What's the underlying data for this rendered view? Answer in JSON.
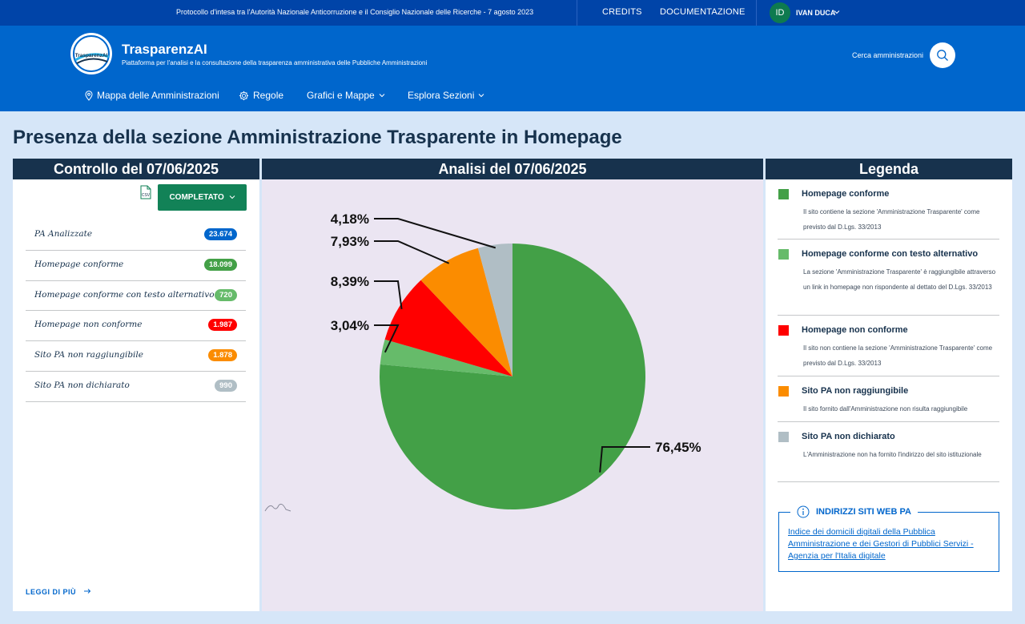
{
  "topbar": {
    "protocol": "Protocollo d'intesa tra l'Autorità Nazionale Anticorruzione e il Consiglio Nazionale delle Ricerche - 7 agosto 2023",
    "credits": "CREDITS",
    "documentazione": "DOCUMENTAZIONE",
    "user_initials": "ID",
    "user_name": "IVAN DUCA"
  },
  "header": {
    "logo_text": "TrasparenzAI",
    "title": "TrasparenzAI",
    "subtitle": "Piattaforma per l'analisi e la consultazione della trasparenza amministrativa delle Pubbliche Amministrazioni",
    "search_label": "Cerca amministrazioni"
  },
  "nav": {
    "mappa": "Mappa delle Amministrazioni",
    "regole": "Regole",
    "grafici": "Grafici e Mappe",
    "esplora": "Esplora Sezioni"
  },
  "page_title": "Presenza della sezione Amministrazione Trasparente in Homepage",
  "left": {
    "title": "Controllo del 07/06/2025",
    "csv": "CSV",
    "status_button": "COMPLETATO",
    "stats": [
      {
        "label": "PA Analizzate",
        "value": "23.674",
        "color": "#0066cc"
      },
      {
        "label": "Homepage conforme",
        "value": "18.099",
        "color": "#43a047"
      },
      {
        "label": "Homepage conforme con testo alternativo",
        "value": "720",
        "color": "#66bb6a"
      },
      {
        "label": "Homepage non conforme",
        "value": "1.987",
        "color": "#ff0000"
      },
      {
        "label": "Sito PA non raggiungibile",
        "value": "1.878",
        "color": "#fb8c00"
      },
      {
        "label": "Sito PA non dichiarato",
        "value": "990",
        "color": "#b0bec5"
      }
    ],
    "read_more": "LEGGI DI PIÙ"
  },
  "middle": {
    "title": "Analisi del 07/06/2025"
  },
  "chart_data": {
    "type": "pie",
    "categories": [
      "Homepage conforme",
      "Homepage conforme con testo alternativo",
      "Homepage non conforme",
      "Sito PA non raggiungibile",
      "Sito PA non dichiarato"
    ],
    "values": [
      76.45,
      3.04,
      8.39,
      7.93,
      4.18
    ],
    "labels": [
      "76,45%",
      "3,04%",
      "8,39%",
      "7,93%",
      "4,18%"
    ],
    "colors": [
      "#43a047",
      "#66bb6a",
      "#ff0000",
      "#fb8c00",
      "#b0bec5"
    ],
    "title": "Analisi del 07/06/2025"
  },
  "legend": {
    "title": "Legenda",
    "items": [
      {
        "title": "Homepage conforme",
        "desc": "Il sito contiene la sezione 'Amministrazione Trasparente' come previsto dal D.Lgs. 33/2013",
        "color": "#43a047"
      },
      {
        "title": "Homepage conforme con testo alternativo",
        "desc": "La sezione 'Amministrazione Trasparente' è raggiungibile attraverso un link in homepage non rispondente al dettato del D.Lgs. 33/2013",
        "color": "#66bb6a"
      },
      {
        "title": "Homepage non conforme",
        "desc": "Il sito non contiene la sezione 'Amministrazione Trasparente' come previsto dal D.Lgs. 33/2013",
        "color": "#ff0000"
      },
      {
        "title": "Sito PA non raggiungibile",
        "desc": "Il sito fornito dall'Amministrazione non risulta raggiungibile",
        "color": "#fb8c00"
      },
      {
        "title": "Sito PA non dichiarato",
        "desc": "L'Amministrazione non ha fornito l'indirizzo del sito istituzionale",
        "color": "#b0bec5"
      }
    ],
    "info_title": "INDIRIZZI SITI WEB PA",
    "info_link": "Indice dei domicili digitali della Pubblica Amministrazione e dei Gestori di Pubblici Servizi - Agenzia per l'Italia digitale"
  }
}
